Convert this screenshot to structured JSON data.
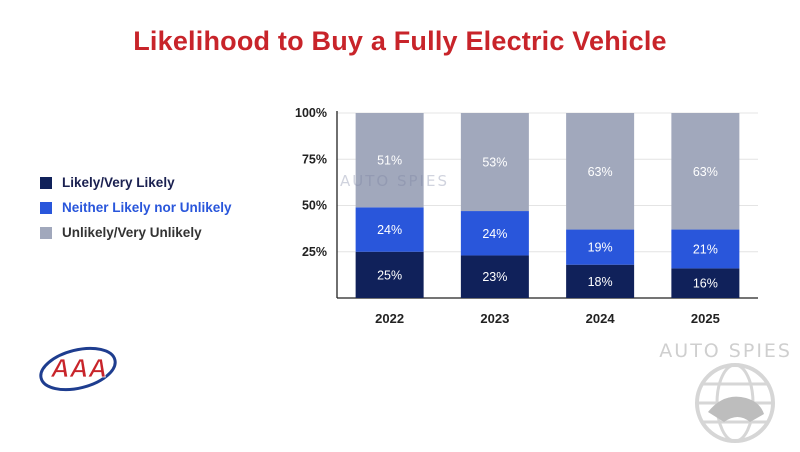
{
  "colors": {
    "title": "#c8242a",
    "likely": "#10215a",
    "neither": "#2956db",
    "unlikely": "#a1a8bc",
    "likely_label": "#1a2050",
    "neither_label": "#2956db",
    "unlikely_label": "#333333",
    "grid": "#e4e4e4",
    "axis": "#222222"
  },
  "chart_data": {
    "type": "bar",
    "stacked": true,
    "title": "Likelihood to Buy a Fully Electric Vehicle",
    "categories": [
      "2022",
      "2023",
      "2024",
      "2025"
    ],
    "series": [
      {
        "name": "Likely/Very Likely",
        "values": [
          25,
          23,
          18,
          16
        ],
        "labels": [
          "25%",
          "23%",
          "18%",
          "16%"
        ]
      },
      {
        "name": "Neither Likely nor Unlikely",
        "values": [
          24,
          24,
          19,
          21
        ],
        "labels": [
          "24%",
          "24%",
          "19%",
          "21%"
        ]
      },
      {
        "name": "Unlikely/Very Unlikely",
        "values": [
          51,
          53,
          63,
          63
        ],
        "labels": [
          "51%",
          "53%",
          "63%",
          "63%"
        ]
      }
    ],
    "ylim": [
      0,
      100
    ],
    "yticks": [
      "25%",
      "50%",
      "75%",
      "100%"
    ],
    "ytick_values": [
      25,
      50,
      75,
      100
    ],
    "grid": true,
    "legend": "left"
  },
  "legend": [
    {
      "label": "Likely/Very Likely",
      "key": "likely"
    },
    {
      "label": "Neither Likely nor Unlikely",
      "key": "neither"
    },
    {
      "label": "Unlikely/Very Unlikely",
      "key": "unlikely"
    }
  ],
  "watermark": {
    "text": "AUTO SPIES"
  },
  "logo": {
    "name": "AAA",
    "icon": "aaa-logo"
  }
}
